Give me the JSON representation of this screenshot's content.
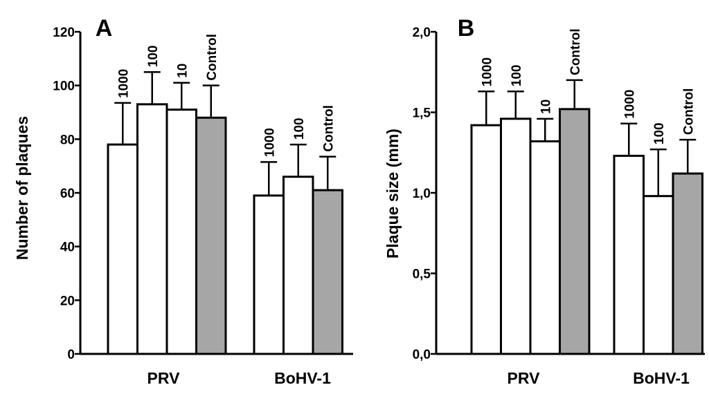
{
  "chart_data": [
    {
      "type": "bar",
      "panel_label": "A",
      "ylabel": "Number of plaques",
      "ylim": [
        0,
        120
      ],
      "yticks": [
        0,
        20,
        40,
        60,
        80,
        100,
        120
      ],
      "ytick_labels": [
        "0",
        "20",
        "40",
        "60",
        "80",
        "100",
        "120"
      ],
      "error_bars": "upper",
      "groups": [
        {
          "name": "PRV",
          "bars": [
            {
              "label": "1000",
              "value": 78,
              "error": 15.5,
              "fill": "white"
            },
            {
              "label": "100",
              "value": 93,
              "error": 12,
              "fill": "white"
            },
            {
              "label": "10",
              "value": 91,
              "error": 10,
              "fill": "white"
            },
            {
              "label": "Control",
              "value": 88,
              "error": 12,
              "fill": "gray"
            }
          ]
        },
        {
          "name": "BoHV-1",
          "bars": [
            {
              "label": "1000",
              "value": 59,
              "error": 12.5,
              "fill": "white"
            },
            {
              "label": "100",
              "value": 66,
              "error": 12,
              "fill": "white"
            },
            {
              "label": "Control",
              "value": 61,
              "error": 12.5,
              "fill": "gray"
            }
          ]
        }
      ]
    },
    {
      "type": "bar",
      "panel_label": "B",
      "ylabel": "Plaque size (mm)",
      "ylim": [
        0,
        2
      ],
      "yticks": [
        0,
        0.5,
        1,
        1.5,
        2
      ],
      "ytick_labels": [
        "0,0",
        "0,5",
        "1,0",
        "1,5",
        "2,0"
      ],
      "error_bars": "upper",
      "groups": [
        {
          "name": "PRV",
          "bars": [
            {
              "label": "1000",
              "value": 1.42,
              "error": 0.21,
              "fill": "white"
            },
            {
              "label": "100",
              "value": 1.46,
              "error": 0.17,
              "fill": "white"
            },
            {
              "label": "10",
              "value": 1.32,
              "error": 0.14,
              "fill": "white"
            },
            {
              "label": "Control",
              "value": 1.52,
              "error": 0.18,
              "fill": "gray"
            }
          ]
        },
        {
          "name": "BoHV-1",
          "bars": [
            {
              "label": "1000",
              "value": 1.23,
              "error": 0.2,
              "fill": "white"
            },
            {
              "label": "100",
              "value": 0.98,
              "error": 0.29,
              "fill": "white"
            },
            {
              "label": "Control",
              "value": 1.12,
              "error": 0.21,
              "fill": "gray"
            }
          ]
        }
      ]
    }
  ],
  "colors": {
    "white": "#ffffff",
    "gray": "#a6a6a6",
    "line": "#000000"
  }
}
